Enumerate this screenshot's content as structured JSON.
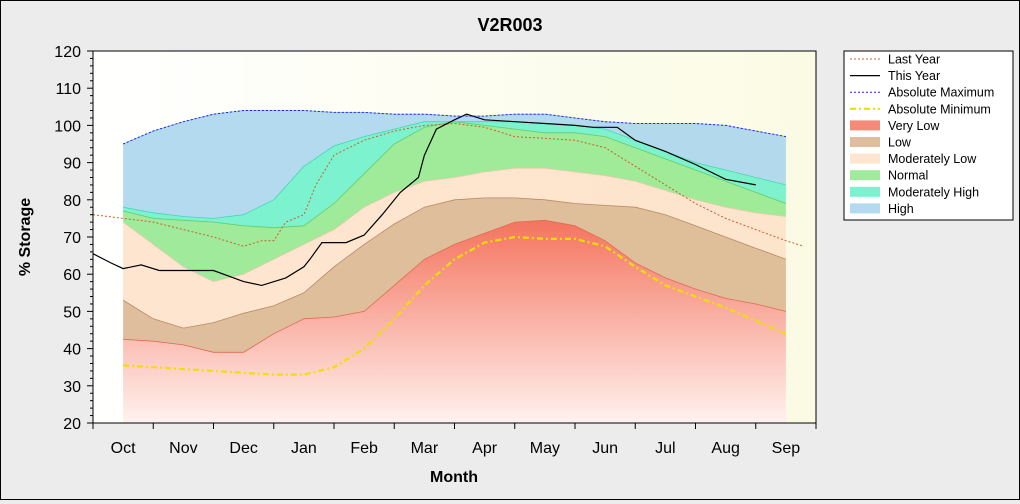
{
  "chart_data": {
    "type": "area",
    "title": "V2R003",
    "xlabel": "Month",
    "ylabel": "% Storage",
    "ylim": [
      20,
      120
    ],
    "yticks": [
      20,
      30,
      40,
      50,
      60,
      70,
      80,
      90,
      100,
      110,
      120
    ],
    "months": [
      "Oct",
      "Nov",
      "Dec",
      "Jan",
      "Feb",
      "Mar",
      "Apr",
      "May",
      "Jun",
      "Jul",
      "Aug",
      "Sep"
    ],
    "x_domain": [
      -0.5,
      11.5
    ],
    "grid": false,
    "legend_position": "right",
    "bands": [
      {
        "name": "Very Low",
        "color": "#f47560",
        "x": [
          0,
          0.5,
          1,
          1.5,
          2,
          2.5,
          3,
          3.5,
          4,
          4.5,
          5,
          5.5,
          6,
          6.5,
          7,
          7.5,
          8,
          8.5,
          9,
          9.5,
          10,
          10.5,
          11
        ],
        "lower": [
          20,
          20,
          20,
          20,
          20,
          20,
          20,
          20,
          20,
          20,
          20,
          20,
          20,
          20,
          20,
          20,
          20,
          20,
          20,
          20,
          20,
          20,
          20
        ],
        "upper": [
          42.5,
          42,
          41,
          39,
          39,
          44,
          48,
          48.5,
          50,
          57,
          64,
          68,
          71,
          74,
          74.5,
          73,
          69,
          63,
          59,
          56,
          53.5,
          52,
          50
        ]
      },
      {
        "name": "Low",
        "color": "#d9b38c",
        "x": [
          0,
          0.5,
          1,
          1.5,
          2,
          2.5,
          3,
          3.5,
          4,
          4.5,
          5,
          5.5,
          6,
          6.5,
          7,
          7.5,
          8,
          8.5,
          9,
          9.5,
          10,
          10.5,
          11
        ],
        "lower": [
          42.5,
          42,
          41,
          39,
          39,
          44,
          48,
          48.5,
          50,
          57,
          64,
          68,
          71,
          74,
          74.5,
          73,
          69,
          63,
          59,
          56,
          53.5,
          52,
          50
        ],
        "upper": [
          53,
          48,
          45.5,
          47,
          49.5,
          51.5,
          55,
          62,
          68,
          73.5,
          78,
          80,
          80.5,
          80.5,
          80,
          79,
          78.5,
          78,
          76,
          73,
          70,
          67,
          64
        ]
      },
      {
        "name": "Moderately Low",
        "color": "#fde1c8",
        "x": [
          0,
          0.5,
          1,
          1.5,
          2,
          2.5,
          3,
          3.5,
          4,
          4.5,
          5,
          5.5,
          6,
          6.5,
          7,
          7.5,
          8,
          8.5,
          9,
          9.5,
          10,
          10.5,
          11
        ],
        "lower": [
          53,
          48,
          45.5,
          47,
          49.5,
          51.5,
          55,
          62,
          68,
          73.5,
          78,
          80,
          80.5,
          80.5,
          80,
          79,
          78.5,
          78,
          76,
          73,
          70,
          67,
          64
        ],
        "upper": [
          74,
          68,
          62,
          58,
          60,
          64,
          68,
          72,
          78,
          82,
          85,
          86,
          87.5,
          88.5,
          88.5,
          87.5,
          86.5,
          85,
          82.5,
          80,
          78,
          76.5,
          75.5
        ]
      },
      {
        "name": "Normal",
        "color": "#8ee88a",
        "x": [
          0,
          0.5,
          1,
          1.5,
          2,
          2.5,
          3,
          3.5,
          4,
          4.5,
          5,
          5.5,
          6,
          6.5,
          7,
          7.5,
          8,
          8.5,
          9,
          9.5,
          10,
          10.5,
          11
        ],
        "lower": [
          74,
          68,
          62,
          58,
          60,
          64,
          68,
          72,
          78,
          82,
          85,
          86,
          87.5,
          88.5,
          88.5,
          87.5,
          86.5,
          85,
          82.5,
          80,
          78,
          76.5,
          75.5
        ],
        "upper": [
          77,
          75,
          74.5,
          74,
          73,
          72.5,
          73,
          79,
          87,
          95,
          99.5,
          101,
          100,
          99,
          98,
          98,
          97,
          94,
          91,
          88,
          85,
          82,
          79
        ]
      },
      {
        "name": "Moderately High",
        "color": "#66f0c8",
        "x": [
          0,
          0.5,
          1,
          1.5,
          2,
          2.5,
          3,
          3.5,
          4,
          4.5,
          5,
          5.5,
          6,
          6.5,
          7,
          7.5,
          8,
          8.5,
          9,
          9.5,
          10,
          10.5,
          11
        ],
        "lower": [
          77,
          75,
          74.5,
          74,
          73,
          72.5,
          73,
          79,
          87,
          95,
          99.5,
          101,
          100,
          99,
          98,
          98,
          97,
          94,
          91,
          88,
          85,
          82,
          79
        ],
        "upper": [
          78,
          76.5,
          75.5,
          75,
          76,
          80,
          89,
          94.5,
          97,
          99,
          101,
          101,
          101,
          101,
          100.5,
          100,
          99,
          96,
          93,
          90,
          88,
          86,
          84
        ]
      },
      {
        "name": "High",
        "color": "#a6d3ec",
        "x": [
          0,
          0.5,
          1,
          1.5,
          2,
          2.5,
          3,
          3.5,
          4,
          4.5,
          5,
          5.5,
          6,
          6.5,
          7,
          7.5,
          8,
          8.5,
          9,
          9.5,
          10,
          10.5,
          11
        ],
        "lower": [
          78,
          76.5,
          75.5,
          75,
          76,
          80,
          89,
          94.5,
          97,
          99,
          101,
          101,
          101,
          101,
          100.5,
          100,
          99,
          96,
          93,
          90,
          88,
          86,
          84
        ],
        "upper": [
          95,
          98.5,
          101,
          103,
          104,
          104,
          104,
          103.5,
          103.5,
          103,
          103,
          102.5,
          102.5,
          103,
          103,
          102,
          101,
          100.5,
          100.5,
          100.5,
          100,
          98.5,
          97
        ]
      }
    ],
    "series": [
      {
        "name": "Last Year",
        "color": "#c8602c",
        "style": "dotted",
        "width": 1,
        "x": [
          -0.5,
          0,
          0.5,
          1,
          1.5,
          2,
          2.3,
          2.5,
          2.7,
          3,
          3.2,
          3.5,
          4,
          4.5,
          5,
          5.5,
          6,
          6.5,
          7,
          7.5,
          8,
          8.5,
          9,
          9.5,
          10,
          10.5,
          11,
          11.3
        ],
        "y": [
          76,
          75,
          74,
          72,
          70,
          67.5,
          69,
          69,
          74,
          76,
          84,
          92,
          96,
          98.5,
          100,
          100.5,
          99.5,
          97,
          96.5,
          96,
          94,
          89,
          84,
          79,
          75,
          72,
          69,
          67.5
        ]
      },
      {
        "name": "This Year",
        "color": "#000000",
        "style": "solid",
        "width": 1.2,
        "x": [
          -0.5,
          -0.2,
          0,
          0.3,
          0.6,
          1,
          1.5,
          2,
          2.3,
          2.7,
          3,
          3.1,
          3.3,
          3.7,
          4,
          4.3,
          4.6,
          4.9,
          5,
          5.2,
          5.5,
          5.7,
          6,
          6.5,
          7,
          7.5,
          7.8,
          8.2,
          8.5,
          9,
          9.5,
          10,
          10.5
        ],
        "y": [
          65.5,
          63,
          61.5,
          62.5,
          61,
          61,
          61,
          58,
          57,
          59,
          62,
          64,
          68.5,
          68.5,
          70.5,
          76,
          82,
          86,
          92,
          99,
          101.5,
          103,
          101.5,
          101,
          100.5,
          100,
          99.5,
          99.5,
          96,
          93,
          89.5,
          85.5,
          84
        ]
      },
      {
        "name": "Absolute Maximum",
        "color": "#2020ee",
        "style": "dotted",
        "width": 1,
        "x": [
          0,
          0.5,
          1,
          1.5,
          2,
          2.5,
          3,
          3.5,
          4,
          4.5,
          5,
          5.5,
          6,
          6.5,
          7,
          7.5,
          8,
          8.5,
          9,
          9.5,
          10,
          10.5,
          11
        ],
        "y": [
          95,
          98.5,
          101,
          103,
          104,
          104,
          104,
          103.5,
          103.5,
          103,
          103,
          102.5,
          102.5,
          103,
          103,
          102,
          101,
          100.5,
          100.5,
          100.5,
          100,
          98.5,
          97
        ]
      },
      {
        "name": "Absolute Minimum",
        "color": "#f0e000",
        "style": "dashdot",
        "width": 2.2,
        "x": [
          0,
          0.5,
          1,
          1.5,
          2,
          2.5,
          3,
          3.5,
          4,
          4.5,
          5,
          5.5,
          6,
          6.5,
          7,
          7.5,
          8,
          8.5,
          9,
          9.5,
          10,
          10.5,
          11
        ],
        "y": [
          35.5,
          35,
          34.5,
          34,
          33.5,
          33,
          33,
          35,
          40,
          48,
          57,
          64,
          68.5,
          70,
          69.5,
          69.5,
          67.5,
          62,
          57,
          54,
          51,
          47.5,
          44
        ]
      }
    ]
  }
}
